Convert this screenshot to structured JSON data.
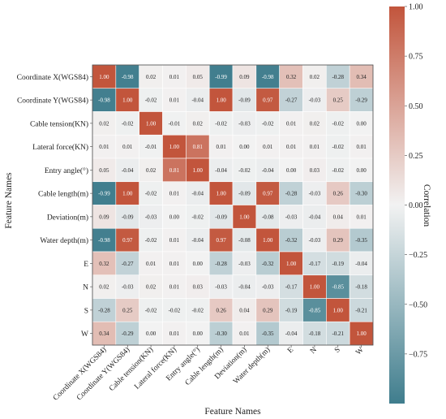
{
  "chart_data": {
    "type": "heatmap",
    "title": "",
    "xlabel": "Feature Names",
    "ylabel": "Feature Names",
    "features": [
      "Coordinate X(WGS84)",
      "Coordinate Y(WGS84)",
      "Cable tension(KN)",
      "Lateral force(KN)",
      "Entry angle(°)",
      "Cable length(m)",
      "Deviation(m)",
      "Water depth(m)",
      "E",
      "N",
      "S",
      "W"
    ],
    "values": [
      [
        1.0,
        -0.98,
        0.02,
        0.01,
        0.05,
        -0.99,
        0.09,
        -0.98,
        0.32,
        0.02,
        -0.28,
        0.34
      ],
      [
        -0.98,
        1.0,
        -0.02,
        0.01,
        -0.04,
        1.0,
        -0.09,
        0.97,
        -0.27,
        -0.03,
        0.25,
        -0.29
      ],
      [
        0.02,
        -0.02,
        1.0,
        -0.01,
        0.02,
        -0.02,
        -0.03,
        -0.02,
        0.01,
        0.02,
        -0.02,
        -0.0
      ],
      [
        0.01,
        0.01,
        -0.01,
        1.0,
        0.81,
        0.01,
        -0.0,
        0.01,
        0.01,
        0.01,
        -0.02,
        0.01
      ],
      [
        0.05,
        -0.04,
        0.02,
        0.81,
        1.0,
        -0.04,
        -0.02,
        -0.04,
        -0.0,
        0.03,
        -0.02,
        -0.0
      ],
      [
        -0.99,
        1.0,
        -0.02,
        0.01,
        -0.04,
        1.0,
        -0.09,
        0.97,
        -0.28,
        -0.03,
        0.26,
        -0.3
      ],
      [
        0.09,
        -0.09,
        -0.03,
        -0.0,
        -0.02,
        -0.09,
        1.0,
        -0.08,
        -0.03,
        -0.04,
        0.04,
        0.01
      ],
      [
        -0.98,
        0.97,
        -0.02,
        0.01,
        -0.04,
        0.97,
        -0.08,
        1.0,
        -0.32,
        -0.03,
        0.29,
        -0.35
      ],
      [
        0.32,
        -0.27,
        0.01,
        0.01,
        -0.0,
        -0.28,
        -0.03,
        -0.32,
        1.0,
        -0.17,
        -0.19,
        -0.04
      ],
      [
        0.02,
        -0.03,
        0.02,
        0.01,
        0.03,
        -0.03,
        -0.04,
        -0.03,
        -0.17,
        1.0,
        -0.85,
        -0.18
      ],
      [
        -0.28,
        0.25,
        -0.02,
        -0.02,
        -0.02,
        0.26,
        0.04,
        0.29,
        -0.19,
        -0.85,
        1.0,
        -0.21
      ],
      [
        0.34,
        -0.29,
        -0.0,
        0.01,
        -0.0,
        -0.3,
        0.01,
        -0.35,
        -0.04,
        -0.18,
        -0.21,
        1.0
      ]
    ],
    "colorbar": {
      "label": "Correlation",
      "range": [
        -1.0,
        1.0
      ],
      "ticks": [
        "1.00",
        "0.75",
        "0.50",
        "0.25",
        "0.00",
        "−0.25",
        "−0.50",
        "−0.75"
      ],
      "tick_values": [
        1.0,
        0.75,
        0.5,
        0.25,
        0.0,
        -0.25,
        -0.5,
        -0.75
      ],
      "colors": {
        "negative": "#3f7d8d",
        "neutral": "#f2f2f2",
        "positive": "#c2553c"
      }
    },
    "grid": true
  }
}
